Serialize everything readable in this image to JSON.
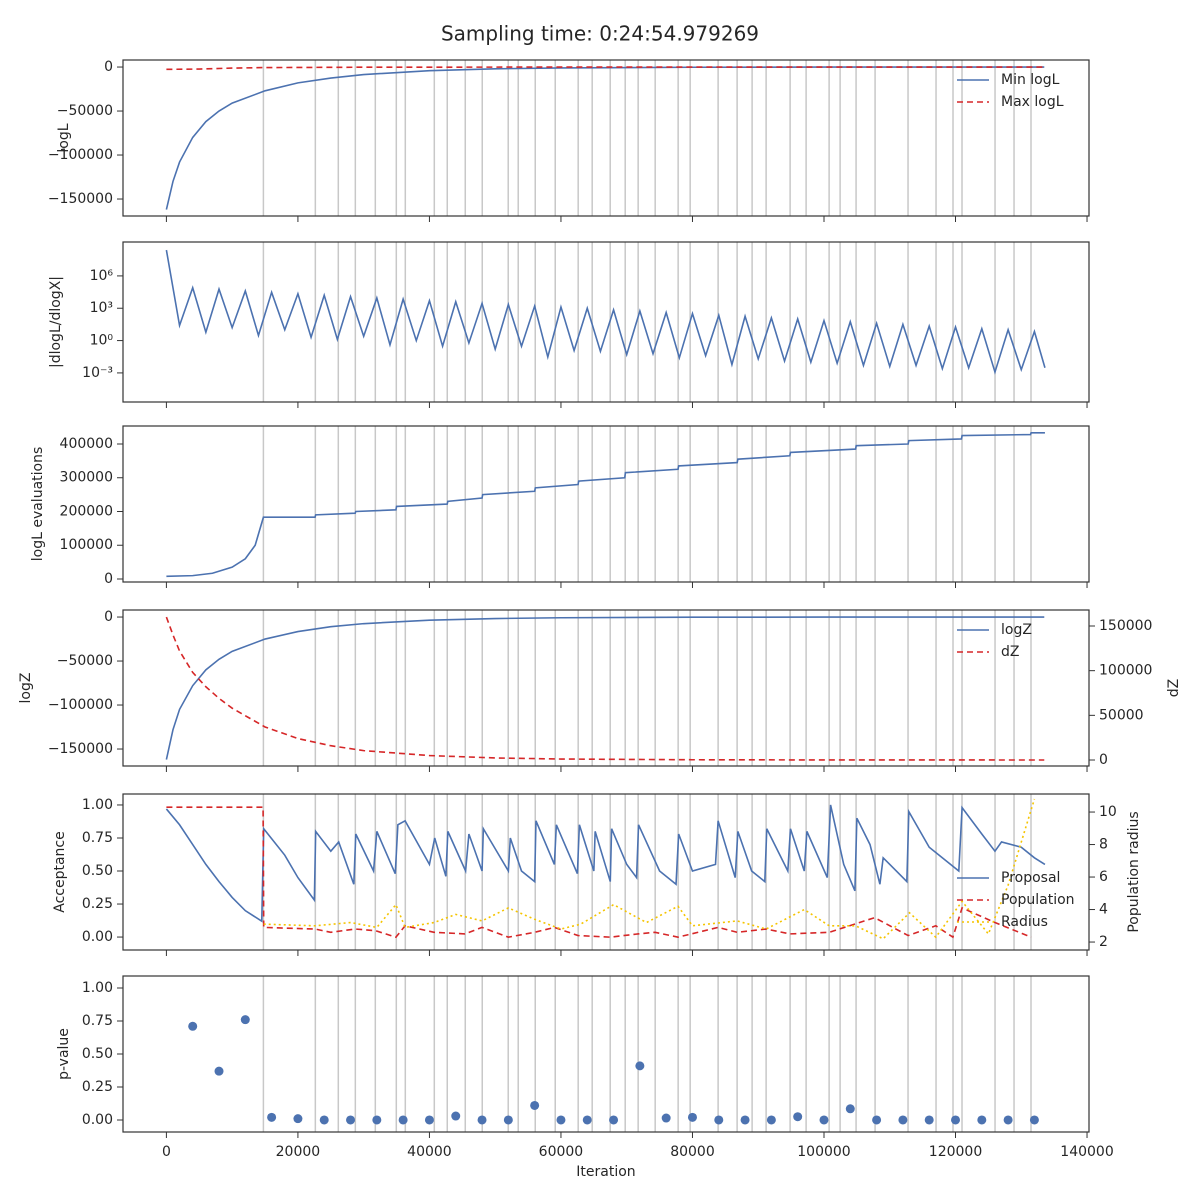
{
  "title": "Sampling time: 0:24:54.979269",
  "vlines": [
    14750,
    22650,
    26140,
    28730,
    31770,
    34960,
    36330,
    40740,
    42710,
    45450,
    48030,
    51980,
    53500,
    56090,
    59130,
    62620,
    64750,
    67490,
    69770,
    71740,
    74330,
    77820,
    79650,
    83900,
    86790,
    89070,
    91200,
    94850,
    97280,
    100780,
    102450,
    104880,
    107770,
    112780,
    117040,
    119620,
    120990,
    126010,
    128900,
    131480
  ],
  "chart_data": [
    {
      "type": "line",
      "ylabel": "logL",
      "xlim": [
        -6600,
        140300
      ],
      "ylim": [
        -169300,
        8000
      ],
      "yticks": [
        {
          "value": -150000,
          "label": "−150000"
        },
        {
          "value": -100000,
          "label": "−100000"
        },
        {
          "value": -50000,
          "label": "−50000"
        },
        0
      ],
      "legend": "upper right",
      "series": [
        {
          "name": "Min logL",
          "color": "#4c72b0",
          "linestyle": "solid",
          "x": [
            0,
            1000,
            2000,
            4000,
            6000,
            8000,
            10000,
            15000,
            20000,
            25000,
            30000,
            40000,
            50000,
            60000,
            80000,
            100000,
            120000,
            133500
          ],
          "values": [
            -162000,
            -130000,
            -108000,
            -80000,
            -62000,
            -50000,
            -41000,
            -27000,
            -18000,
            -12500,
            -8500,
            -4200,
            -2000,
            -1000,
            -250,
            -60,
            -15,
            -5
          ]
        },
        {
          "name": "Max logL",
          "color": "#d62728",
          "linestyle": "dashed",
          "x": [
            0,
            5000,
            10000,
            15000,
            30000,
            60000,
            133500
          ],
          "values": [
            -2600,
            -2300,
            -1200,
            -600,
            -200,
            -30,
            0
          ]
        }
      ]
    },
    {
      "type": "line",
      "ylabel": "|dlogL/dlogX|",
      "yscale": "log",
      "xlim": [
        -6600,
        140300
      ],
      "ylim": [
        2e-06,
        1400000000.0
      ],
      "yticks": [
        {
          "value": 0.001,
          "label": "10⁻³"
        },
        {
          "value": 1,
          "label": "10⁰"
        },
        {
          "value": 1000,
          "label": "10³"
        },
        {
          "value": 1000000,
          "label": "10⁶"
        }
      ],
      "series": [
        {
          "color": "#4c72b0",
          "linestyle": "solid",
          "x": [
            0,
            2000,
            4000,
            6000,
            8000,
            10000,
            12000,
            14000,
            16000,
            18000,
            20000,
            22000,
            24000,
            26000,
            28000,
            30000,
            32000,
            34000,
            36000,
            38000,
            40000,
            42000,
            44000,
            46000,
            48000,
            50000,
            52000,
            54000,
            56000,
            58000,
            60000,
            62000,
            64000,
            66000,
            68000,
            70000,
            72000,
            74000,
            76000,
            78000,
            80000,
            82000,
            84000,
            86000,
            88000,
            90000,
            92000,
            94000,
            96000,
            98000,
            100000,
            102000,
            104000,
            106000,
            108000,
            110000,
            112000,
            114000,
            116000,
            118000,
            120000,
            122000,
            124000,
            126000,
            128000,
            130000,
            132000,
            133600
          ],
          "values": [
            250000000.0,
            25,
            80000,
            6,
            60000,
            16,
            40000,
            3,
            30000,
            10,
            22000,
            2,
            16000,
            1.3,
            12000,
            2.5,
            9000,
            0.4,
            7000,
            1,
            5000,
            0.3,
            4000,
            0.6,
            2800,
            0.16,
            2200,
            0.3,
            1600,
            0.03,
            1300,
            0.12,
            1000,
            0.1,
            700,
            0.05,
            560,
            0.06,
            400,
            0.025,
            320,
            0.04,
            220,
            0.006,
            180,
            0.02,
            125,
            0.0125,
            100,
            0.01,
            70,
            0.008,
            56,
            0.005,
            40,
            0.004,
            32,
            0.005,
            22,
            0.0025,
            18,
            0.003,
            12.5,
            0.0012,
            10,
            0.002,
            7,
            0.003
          ]
        }
      ]
    },
    {
      "type": "line",
      "ylabel": "logL evaluations",
      "xlim": [
        -6600,
        140300
      ],
      "ylim": [
        -8900,
        453300
      ],
      "yticks": [
        0,
        100000,
        200000,
        300000,
        400000
      ],
      "series": [
        {
          "color": "#4c72b0",
          "linestyle": "solid",
          "x": [
            0,
            4000,
            7000,
            10000,
            12000,
            13500,
            14750,
            22600,
            22700,
            28700,
            28800,
            34900,
            35000,
            42700,
            42800,
            48000,
            48100,
            56000,
            56100,
            62600,
            62700,
            69700,
            69800,
            77800,
            77900,
            86800,
            86900,
            94800,
            94900,
            104800,
            104900,
            112800,
            112900,
            120900,
            121000,
            131400,
            131500,
            133600
          ],
          "values": [
            8000,
            10000,
            17000,
            35000,
            60000,
            100000,
            183000,
            183000,
            190000,
            195000,
            200000,
            205000,
            215000,
            222000,
            230000,
            240000,
            250000,
            260000,
            270000,
            280000,
            290000,
            300000,
            315000,
            325000,
            335000,
            345000,
            355000,
            365000,
            375000,
            385000,
            395000,
            400000,
            410000,
            415000,
            425000,
            428000,
            433000,
            433000
          ]
        }
      ]
    },
    {
      "type": "line",
      "ylabel": "logZ",
      "y2label": "dZ",
      "xlim": [
        -6600,
        140300
      ],
      "ylim": [
        -169300,
        8000
      ],
      "yticks": [
        {
          "value": -150000,
          "label": "−150000"
        },
        {
          "value": -100000,
          "label": "−100000"
        },
        {
          "value": -50000,
          "label": "−50000"
        },
        0
      ],
      "y2lim": [
        -6700,
        167900
      ],
      "y2ticks": [
        0,
        50000,
        100000,
        150000
      ],
      "legend": "upper right",
      "series": [
        {
          "name": "logZ",
          "color": "#4c72b0",
          "linestyle": "solid",
          "x": [
            0,
            1000,
            2000,
            4000,
            6000,
            8000,
            10000,
            15000,
            20000,
            25000,
            30000,
            40000,
            50000,
            60000,
            80000,
            100000,
            133500
          ],
          "values": [
            -162000,
            -128000,
            -105000,
            -78000,
            -60000,
            -48000,
            -39000,
            -25000,
            -16500,
            -11000,
            -7500,
            -3600,
            -1700,
            -800,
            -200,
            -50,
            -5
          ]
        },
        {
          "name": "dZ",
          "color": "#d62728",
          "linestyle": "dashed",
          "axis": "y2",
          "x": [
            0,
            1000,
            2000,
            4000,
            6000,
            8000,
            10000,
            15000,
            20000,
            25000,
            30000,
            40000,
            50000,
            60000,
            80000,
            100000,
            133500
          ],
          "values": [
            160000,
            140000,
            122000,
            98000,
            82000,
            69000,
            58000,
            37000,
            24000,
            16000,
            10500,
            5000,
            2300,
            1100,
            300,
            80,
            10
          ]
        }
      ]
    },
    {
      "type": "line",
      "ylabel": "Acceptance",
      "y2label": "Population radius",
      "xlim": [
        -6600,
        140300
      ],
      "ylim": [
        -0.098,
        1.083
      ],
      "yticks": [
        {
          "value": 0,
          "label": "0.00"
        },
        {
          "value": 0.25,
          "label": "0.25"
        },
        {
          "value": 0.5,
          "label": "0.50"
        },
        {
          "value": 0.75,
          "label": "0.75"
        },
        {
          "value": 1,
          "label": "1.00"
        }
      ],
      "y2lim": [
        1.51,
        11.11
      ],
      "y2ticks": [
        2,
        4,
        6,
        8,
        10
      ],
      "legend": "lower right",
      "series": [
        {
          "name": "Proposal",
          "color": "#4c72b0",
          "linestyle": "solid",
          "x": [
            0,
            2000,
            4000,
            6000,
            8000,
            10000,
            12000,
            14500,
            14800,
            18000,
            20000,
            22500,
            22700,
            25000,
            26200,
            28500,
            28800,
            31500,
            32000,
            34800,
            35200,
            36300,
            40000,
            40800,
            42500,
            42800,
            45500,
            46000,
            48000,
            48200,
            52000,
            52300,
            54000,
            56000,
            56200,
            59000,
            59300,
            62500,
            62800,
            65000,
            65200,
            67500,
            67700,
            70000,
            71500,
            71800,
            75000,
            77500,
            77900,
            80000,
            83500,
            83900,
            86500,
            86900,
            89000,
            91000,
            91300,
            94500,
            94900,
            97000,
            97400,
            100500,
            101000,
            103000,
            104700,
            105000,
            107000,
            108500,
            109000,
            112600,
            112900,
            116000,
            120500,
            121000,
            124000,
            126000,
            127000,
            130000,
            132000,
            133600
          ],
          "values": [
            0.97,
            0.85,
            0.7,
            0.55,
            0.42,
            0.3,
            0.2,
            0.12,
            0.82,
            0.62,
            0.45,
            0.28,
            0.8,
            0.65,
            0.72,
            0.4,
            0.78,
            0.5,
            0.8,
            0.48,
            0.85,
            0.88,
            0.55,
            0.75,
            0.46,
            0.8,
            0.5,
            0.78,
            0.5,
            0.82,
            0.5,
            0.75,
            0.5,
            0.42,
            0.88,
            0.55,
            0.85,
            0.48,
            0.85,
            0.5,
            0.8,
            0.42,
            0.82,
            0.55,
            0.45,
            0.85,
            0.5,
            0.4,
            0.78,
            0.5,
            0.55,
            0.88,
            0.45,
            0.8,
            0.5,
            0.42,
            0.82,
            0.5,
            0.82,
            0.5,
            0.8,
            0.45,
            1.0,
            0.55,
            0.35,
            0.9,
            0.7,
            0.4,
            0.6,
            0.42,
            0.95,
            0.68,
            0.5,
            0.98,
            0.78,
            0.65,
            0.72,
            0.68,
            0.6,
            0.55
          ]
        },
        {
          "name": "Population",
          "color": "#d62728",
          "linestyle": "dashed",
          "axis": "y2",
          "x": [
            0,
            14700,
            14800,
            22600,
            25000,
            28700,
            31800,
            34900,
            36300,
            40700,
            45400,
            48000,
            52000,
            56000,
            59000,
            62600,
            67500,
            71700,
            74300,
            77800,
            83900,
            86800,
            91200,
            94800,
            100800,
            107700,
            112800,
            117000,
            119600,
            121000,
            126000,
            131500
          ],
          "values": [
            10.3,
            10.3,
            2.9,
            2.8,
            2.6,
            2.8,
            2.7,
            2.3,
            3.0,
            2.6,
            2.5,
            2.9,
            2.3,
            2.6,
            2.9,
            2.4,
            2.3,
            2.5,
            2.6,
            2.3,
            2.9,
            2.6,
            2.8,
            2.5,
            2.6,
            3.5,
            2.4,
            3.0,
            2.3,
            4.1,
            3.2,
            2.3
          ]
        },
        {
          "name": "Radius",
          "color": "#f5c400",
          "linestyle": "dotted",
          "axis": "y2",
          "x": [
            14800,
            22600,
            28000,
            32000,
            34900,
            36300,
            40700,
            44000,
            48000,
            52000,
            56000,
            60000,
            63000,
            68000,
            73000,
            77800,
            80000,
            86800,
            91200,
            97000,
            100800,
            104800,
            109000,
            113000,
            117000,
            121000,
            125000,
            128000,
            132000
          ],
          "values": [
            3.1,
            3.0,
            3.2,
            2.9,
            4.3,
            2.9,
            3.2,
            3.7,
            3.3,
            4.1,
            3.4,
            2.8,
            3.1,
            4.3,
            3.2,
            4.2,
            3.0,
            3.3,
            2.8,
            4.0,
            3.0,
            3.0,
            2.2,
            3.8,
            2.3,
            4.5,
            2.5,
            5.5,
            10.8
          ]
        }
      ]
    },
    {
      "type": "scatter",
      "ylabel": "p-value",
      "xlabel": "Iteration",
      "xlim": [
        -6600,
        140300
      ],
      "ylim": [
        -0.091,
        1.091
      ],
      "yticks": [
        {
          "value": 0,
          "label": "0.00"
        },
        {
          "value": 0.25,
          "label": "0.25"
        },
        {
          "value": 0.5,
          "label": "0.50"
        },
        {
          "value": 0.75,
          "label": "0.75"
        },
        {
          "value": 1,
          "label": "1.00"
        }
      ],
      "xticks": [
        0,
        20000,
        40000,
        60000,
        80000,
        100000,
        120000,
        140000
      ],
      "series": [
        {
          "color": "#4c72b0",
          "x": [
            4000,
            8000,
            12000,
            16000,
            20000,
            24000,
            28000,
            32000,
            36000,
            40000,
            44000,
            48000,
            52000,
            56000,
            60000,
            64000,
            68000,
            72000,
            76000,
            80000,
            84000,
            88000,
            92000,
            96000,
            100000,
            104000,
            108000,
            112000,
            116000,
            120000,
            124000,
            128000,
            132000
          ],
          "values": [
            0.71,
            0.37,
            0.76,
            0.02,
            0.01,
            0,
            0,
            0,
            0,
            0,
            0.03,
            0,
            0,
            0.11,
            0,
            0,
            0,
            0.41,
            0.015,
            0.02,
            0,
            0,
            0,
            0.025,
            0,
            0.085,
            0,
            0,
            0,
            0,
            0,
            0,
            0
          ]
        }
      ]
    }
  ]
}
